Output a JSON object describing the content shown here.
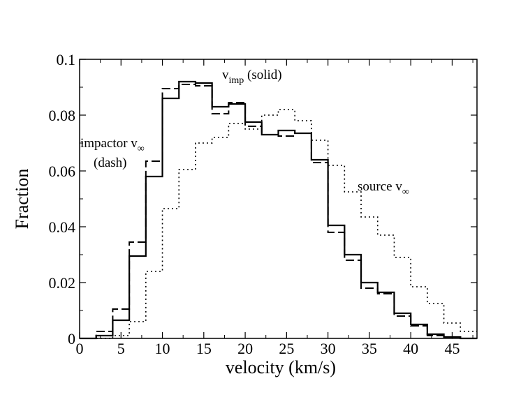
{
  "chart_data": {
    "type": "line",
    "step": true,
    "title": "",
    "xlabel": "velocity (km/s)",
    "ylabel": "Fraction",
    "xlim": [
      0,
      48
    ],
    "ylim": [
      0,
      0.1
    ],
    "xticks": [
      0,
      5,
      10,
      15,
      20,
      25,
      30,
      35,
      40,
      45
    ],
    "yticks": [
      0,
      0.02,
      0.04,
      0.06,
      0.08,
      0.1
    ],
    "xtick_labels": [
      "0",
      "5",
      "10",
      "15",
      "20",
      "25",
      "30",
      "35",
      "40",
      "45"
    ],
    "ytick_labels": [
      "0",
      "0.02",
      "0.04",
      "0.06",
      "0.08",
      "0.1"
    ],
    "bin_edges": [
      0,
      2,
      4,
      6,
      8,
      10,
      12,
      14,
      16,
      18,
      20,
      22,
      24,
      26,
      28,
      30,
      32,
      34,
      36,
      38,
      40,
      42,
      44,
      46,
      48
    ],
    "series": [
      {
        "name": "v_imp (solid)",
        "style": "solid",
        "color": "#000000",
        "values": [
          0.0,
          0.001,
          0.0065,
          0.0295,
          0.058,
          0.086,
          0.092,
          0.0915,
          0.083,
          0.084,
          0.0775,
          0.073,
          0.0745,
          0.0735,
          0.064,
          0.0405,
          0.03,
          0.02,
          0.0165,
          0.009,
          0.005,
          0.0015,
          0.0005,
          0.0
        ]
      },
      {
        "name": "impactor v∞ (dash)",
        "style": "dash",
        "color": "#000000",
        "values": [
          0.0,
          0.0025,
          0.0105,
          0.0345,
          0.0635,
          0.0895,
          0.091,
          0.0905,
          0.0805,
          0.0845,
          0.076,
          0.073,
          0.0725,
          0.0735,
          0.063,
          0.038,
          0.028,
          0.018,
          0.016,
          0.008,
          0.0045,
          0.001,
          0.0005,
          0.0
        ]
      },
      {
        "name": "source v∞",
        "style": "dotted",
        "color": "#000000",
        "values": [
          0.0,
          0.0,
          0.001,
          0.006,
          0.024,
          0.0465,
          0.0605,
          0.07,
          0.072,
          0.077,
          0.075,
          0.08,
          0.082,
          0.078,
          0.071,
          0.062,
          0.0525,
          0.0435,
          0.037,
          0.029,
          0.0185,
          0.0125,
          0.0055,
          0.0025
        ]
      }
    ],
    "annotations": {
      "vimp": {
        "base": "v",
        "sub": "imp",
        "rest": " (solid)"
      },
      "impactor_line1": {
        "base": "impactor v",
        "sub": "∞"
      },
      "impactor_line2": "(dash)",
      "source": {
        "base": "source v",
        "sub": "∞"
      }
    }
  }
}
